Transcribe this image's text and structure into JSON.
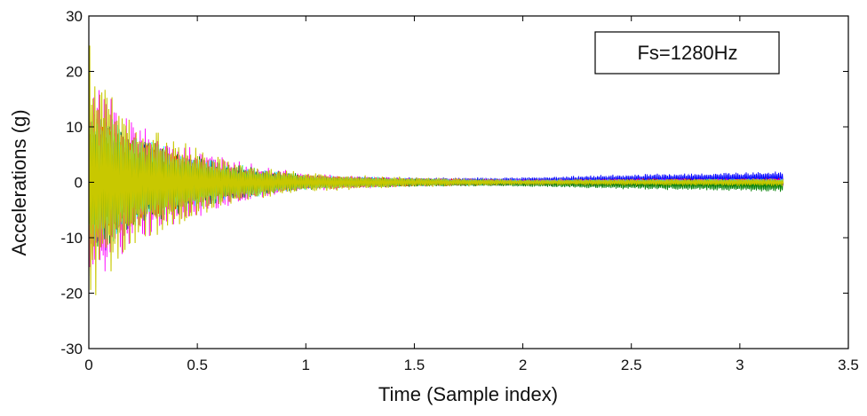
{
  "chart_data": {
    "type": "line",
    "title": "",
    "xlabel": "Time (Sample index)",
    "ylabel": "Accelerations (g)",
    "xlim": [
      0,
      3.5
    ],
    "ylim": [
      -30,
      30
    ],
    "xticks": [
      0,
      0.5,
      1,
      1.5,
      2,
      2.5,
      3,
      3.5
    ],
    "xtick_labels": [
      "0",
      "0.5",
      "1",
      "1.5",
      "2",
      "2.5",
      "3",
      "3.5"
    ],
    "yticks": [
      -30,
      -20,
      -10,
      0,
      10,
      20,
      30
    ],
    "ytick_labels": [
      "-30",
      "-20",
      "-10",
      "0",
      "10",
      "20",
      "30"
    ],
    "grid": false,
    "annotation": "Fs=1280Hz",
    "x_end": 3.2,
    "series": [
      {
        "color": "#0000ff",
        "envelope": [
          [
            0,
            14
          ],
          [
            0.1,
            12
          ],
          [
            0.2,
            8
          ],
          [
            0.4,
            5
          ],
          [
            0.6,
            3
          ],
          [
            0.8,
            2
          ],
          [
            1.0,
            1.2
          ],
          [
            1.5,
            0.8
          ],
          [
            2.0,
            0.6
          ],
          [
            2.5,
            1.0
          ],
          [
            3.2,
            1.2
          ]
        ],
        "offset": [
          [
            0,
            0
          ],
          [
            1.2,
            0
          ],
          [
            2.0,
            0.3
          ],
          [
            3.2,
            0.8
          ]
        ]
      },
      {
        "color": "#ff0000",
        "envelope": [
          [
            0,
            12
          ],
          [
            0.1,
            11
          ],
          [
            0.2,
            8
          ],
          [
            0.4,
            5
          ],
          [
            0.6,
            3
          ],
          [
            0.8,
            2
          ],
          [
            1.0,
            1.2
          ],
          [
            1.5,
            0.8
          ],
          [
            2.0,
            0.5
          ],
          [
            2.5,
            0.7
          ],
          [
            3.2,
            0.8
          ]
        ],
        "offset": [
          [
            0,
            0
          ],
          [
            3.2,
            0
          ]
        ]
      },
      {
        "color": "#ff00ff",
        "envelope": [
          [
            0,
            18
          ],
          [
            0.1,
            16
          ],
          [
            0.2,
            12
          ],
          [
            0.4,
            8
          ],
          [
            0.6,
            5
          ],
          [
            0.8,
            3
          ],
          [
            1.0,
            1.6
          ],
          [
            1.5,
            0.8
          ],
          [
            2.0,
            0.5
          ],
          [
            2.5,
            0.7
          ],
          [
            3.2,
            0.8
          ]
        ],
        "offset": [
          [
            0,
            0
          ],
          [
            3.2,
            0
          ]
        ]
      },
      {
        "color": "#00ffff",
        "envelope": [
          [
            0,
            14
          ],
          [
            0.1,
            12
          ],
          [
            0.2,
            9
          ],
          [
            0.4,
            6
          ],
          [
            0.6,
            4
          ],
          [
            0.8,
            2.5
          ],
          [
            1.0,
            1.4
          ],
          [
            1.5,
            0.8
          ],
          [
            2.0,
            0.5
          ],
          [
            2.5,
            0.6
          ],
          [
            3.2,
            0.7
          ]
        ],
        "offset": [
          [
            0,
            0
          ],
          [
            3.2,
            0
          ]
        ]
      },
      {
        "color": "#008000",
        "envelope": [
          [
            0,
            14
          ],
          [
            0.1,
            12
          ],
          [
            0.2,
            9
          ],
          [
            0.4,
            6
          ],
          [
            0.6,
            4
          ],
          [
            0.8,
            2.5
          ],
          [
            1.0,
            1.4
          ],
          [
            1.5,
            0.8
          ],
          [
            2.0,
            0.6
          ],
          [
            2.5,
            1.0
          ],
          [
            3.2,
            1.2
          ]
        ],
        "offset": [
          [
            0,
            0
          ],
          [
            1.2,
            0
          ],
          [
            2.0,
            -0.2
          ],
          [
            3.2,
            -0.6
          ]
        ]
      },
      {
        "color": "#c8c800",
        "envelope": [
          [
            0,
            28
          ],
          [
            0.02,
            22
          ],
          [
            0.1,
            17
          ],
          [
            0.2,
            12
          ],
          [
            0.4,
            8
          ],
          [
            0.6,
            5
          ],
          [
            0.8,
            3
          ],
          [
            1.0,
            1.8
          ],
          [
            1.5,
            0.9
          ],
          [
            2.0,
            0.5
          ],
          [
            2.5,
            0.6
          ],
          [
            3.2,
            0.7
          ]
        ],
        "offset": [
          [
            0,
            0
          ],
          [
            3.2,
            0
          ]
        ]
      }
    ]
  }
}
